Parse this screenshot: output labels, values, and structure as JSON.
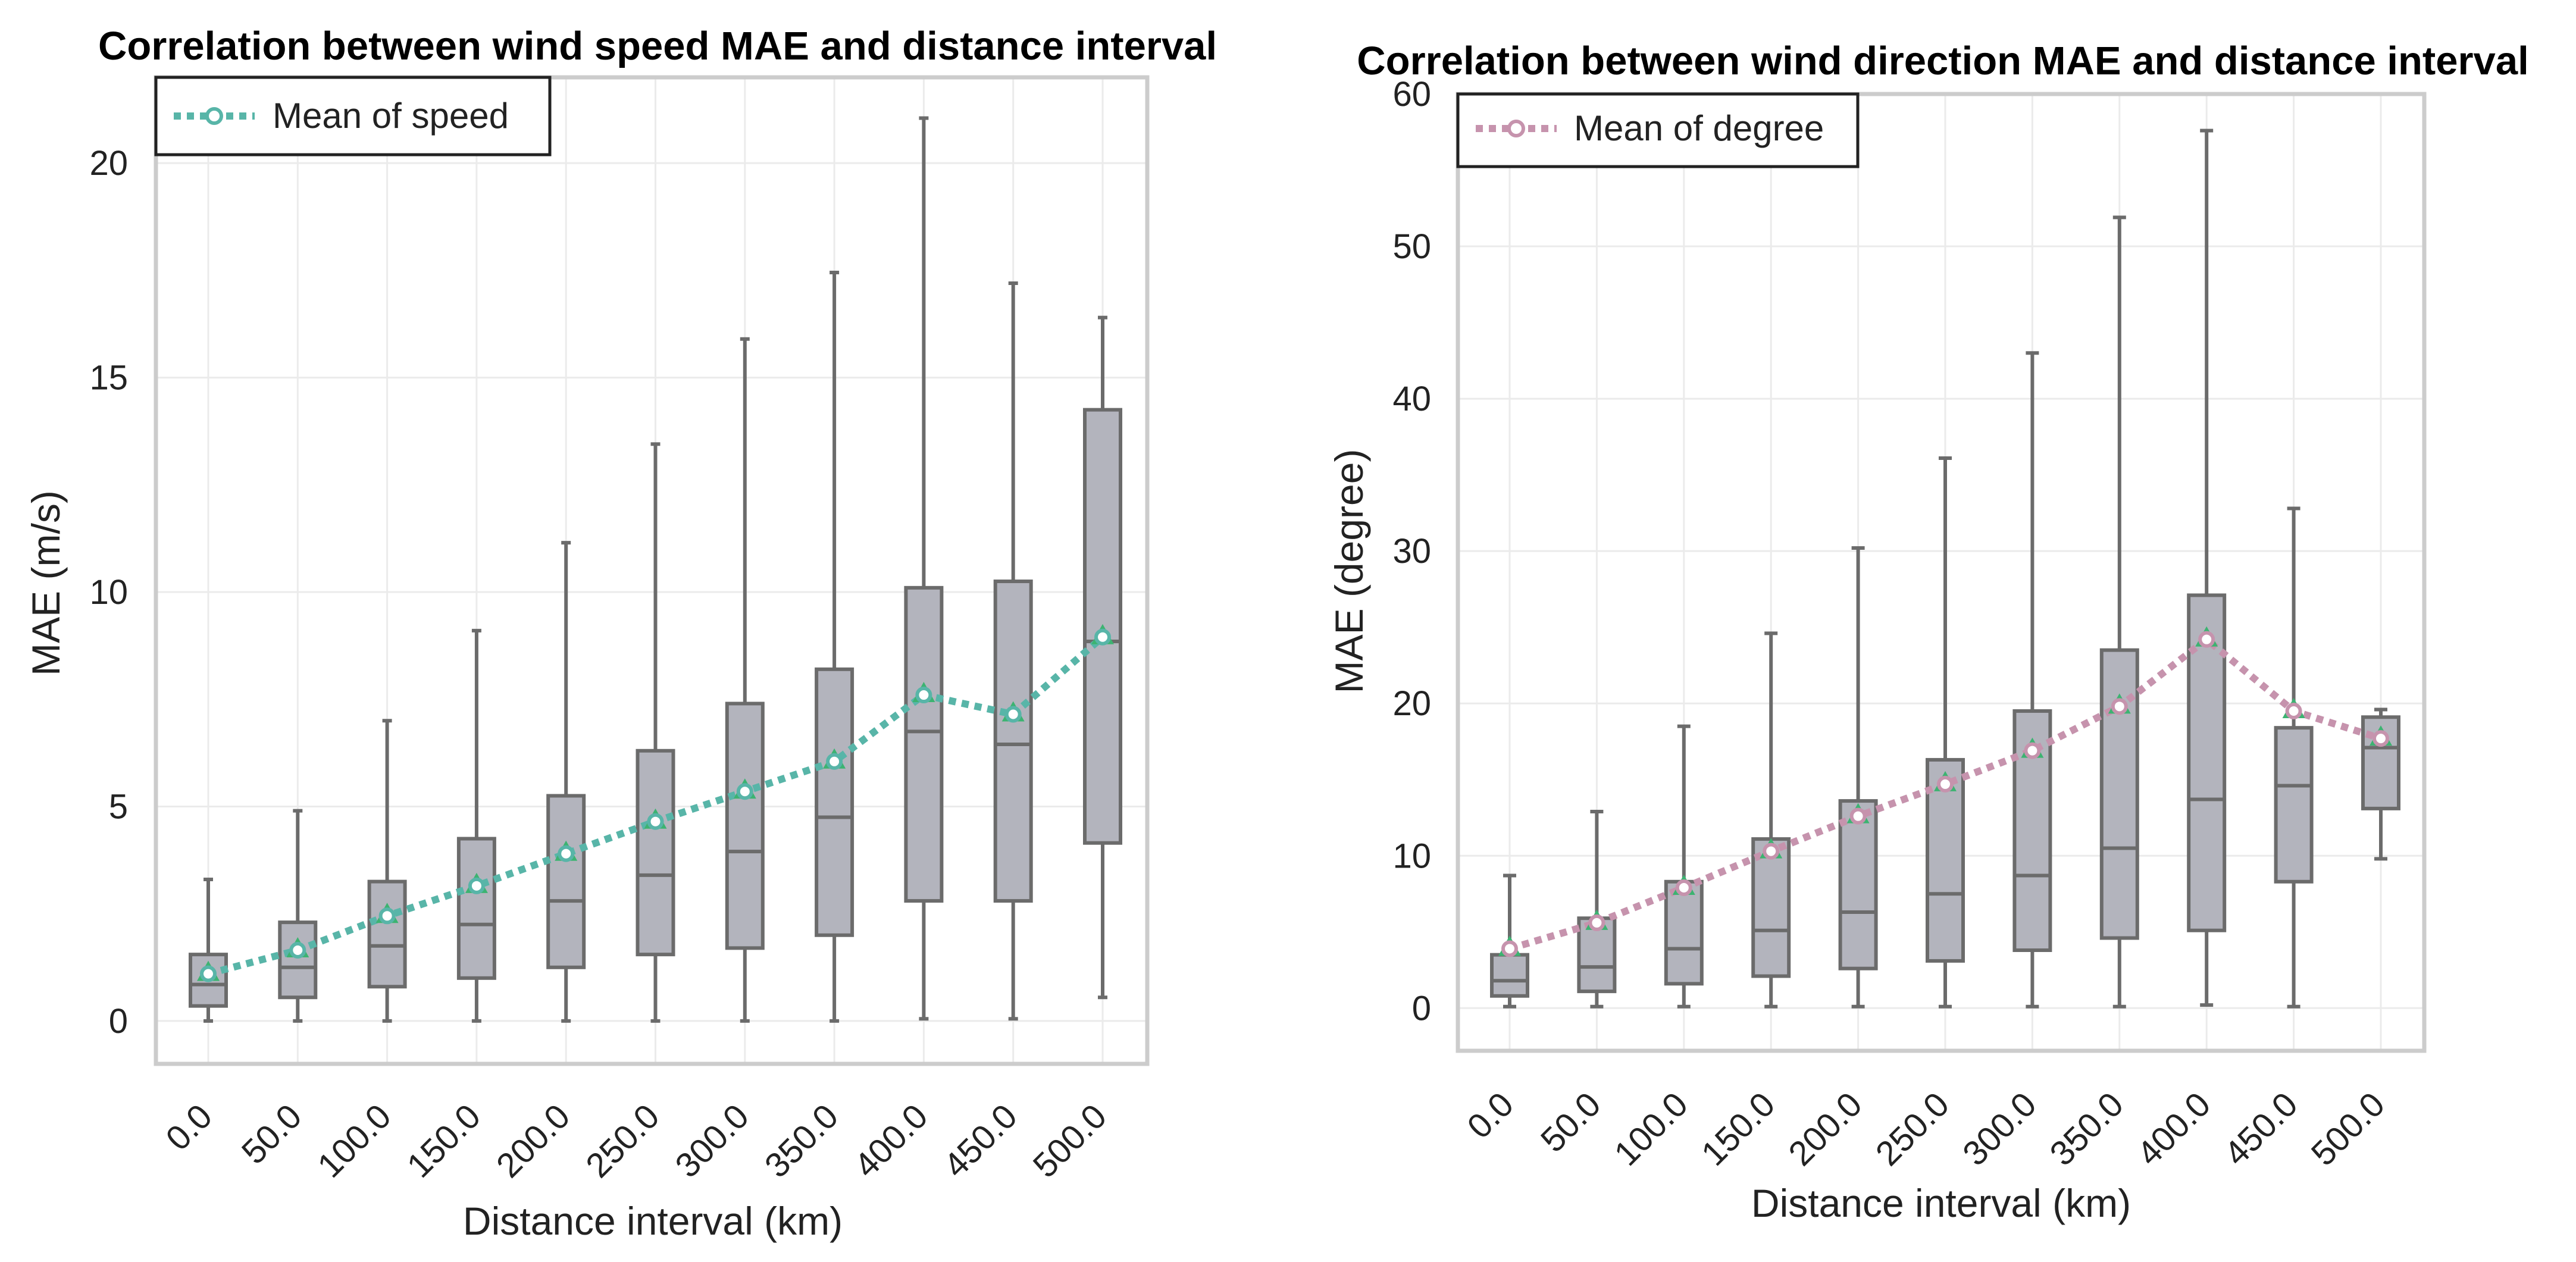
{
  "chart_data": [
    {
      "type": "box",
      "title": "Correlation between wind speed MAE and distance interval",
      "xlabel": "Distance interval (km)",
      "ylabel": "MAE (m/s)",
      "ylim": [
        -1,
        22
      ],
      "yticks": [
        0,
        5,
        10,
        15,
        20
      ],
      "categories": [
        "0.0",
        "50.0",
        "100.0",
        "150.0",
        "200.0",
        "250.0",
        "300.0",
        "350.0",
        "400.0",
        "450.0",
        "500.0"
      ],
      "boxes": [
        {
          "min": 0.0,
          "q1": 0.35,
          "median": 0.85,
          "q3": 1.55,
          "max": 3.3,
          "mean": 1.1
        },
        {
          "min": 0.0,
          "q1": 0.55,
          "median": 1.25,
          "q3": 2.3,
          "max": 4.9,
          "mean": 1.65
        },
        {
          "min": 0.0,
          "q1": 0.8,
          "median": 1.75,
          "q3": 3.25,
          "max": 7.0,
          "mean": 2.45
        },
        {
          "min": 0.0,
          "q1": 1.0,
          "median": 2.25,
          "q3": 4.25,
          "max": 9.1,
          "mean": 3.15
        },
        {
          "min": 0.0,
          "q1": 1.25,
          "median": 2.8,
          "q3": 5.25,
          "max": 11.15,
          "mean": 3.9
        },
        {
          "min": 0.0,
          "q1": 1.55,
          "median": 3.4,
          "q3": 6.3,
          "max": 13.45,
          "mean": 4.65
        },
        {
          "min": 0.0,
          "q1": 1.7,
          "median": 3.95,
          "q3": 7.4,
          "max": 15.9,
          "mean": 5.35
        },
        {
          "min": 0.0,
          "q1": 2.0,
          "median": 4.75,
          "q3": 8.2,
          "max": 17.45,
          "mean": 6.05
        },
        {
          "min": 0.05,
          "q1": 2.8,
          "median": 6.75,
          "q3": 10.1,
          "max": 21.05,
          "mean": 7.6
        },
        {
          "min": 0.05,
          "q1": 2.8,
          "median": 6.45,
          "q3": 10.25,
          "max": 17.2,
          "mean": 7.15
        },
        {
          "min": 0.55,
          "q1": 4.15,
          "median": 8.85,
          "q3": 14.25,
          "max": 16.4,
          "mean": 8.95
        }
      ],
      "series": [
        {
          "name": "Mean of speed",
          "color": "#58b5a8",
          "marker_color": "#3cb371"
        }
      ]
    },
    {
      "type": "box",
      "title": "Correlation between wind direction MAE and distance interval",
      "xlabel": "Distance interval (km)",
      "ylabel": "MAE (degree)",
      "ylim": [
        -2.8,
        60
      ],
      "yticks": [
        0,
        10,
        20,
        30,
        40,
        50,
        60
      ],
      "categories": [
        "0.0",
        "50.0",
        "100.0",
        "150.0",
        "200.0",
        "250.0",
        "300.0",
        "350.0",
        "400.0",
        "450.0",
        "500.0"
      ],
      "boxes": [
        {
          "min": 0.1,
          "q1": 0.8,
          "median": 1.8,
          "q3": 3.5,
          "max": 8.7,
          "mean": 3.9
        },
        {
          "min": 0.1,
          "q1": 1.1,
          "median": 2.7,
          "q3": 5.9,
          "max": 12.9,
          "mean": 5.6
        },
        {
          "min": 0.1,
          "q1": 1.6,
          "median": 3.9,
          "q3": 8.3,
          "max": 18.5,
          "mean": 7.9
        },
        {
          "min": 0.1,
          "q1": 2.1,
          "median": 5.1,
          "q3": 11.1,
          "max": 24.6,
          "mean": 10.3
        },
        {
          "min": 0.1,
          "q1": 2.6,
          "median": 6.3,
          "q3": 13.6,
          "max": 30.2,
          "mean": 12.6
        },
        {
          "min": 0.1,
          "q1": 3.1,
          "median": 7.5,
          "q3": 16.3,
          "max": 36.1,
          "mean": 14.7
        },
        {
          "min": 0.1,
          "q1": 3.8,
          "median": 8.7,
          "q3": 19.5,
          "max": 43.0,
          "mean": 16.9
        },
        {
          "min": 0.1,
          "q1": 4.6,
          "median": 10.5,
          "q3": 23.5,
          "max": 51.9,
          "mean": 19.8
        },
        {
          "min": 0.2,
          "q1": 5.1,
          "median": 13.7,
          "q3": 27.1,
          "max": 57.6,
          "mean": 24.2
        },
        {
          "min": 0.1,
          "q1": 8.3,
          "median": 14.6,
          "q3": 18.4,
          "max": 32.8,
          "mean": 19.5
        },
        {
          "min": 9.8,
          "q1": 13.1,
          "median": 17.1,
          "q3": 19.1,
          "max": 19.6,
          "mean": 17.7
        }
      ],
      "series": [
        {
          "name": "Mean of degree",
          "color": "#c693ad",
          "marker_color": "#3cb371"
        }
      ]
    }
  ]
}
